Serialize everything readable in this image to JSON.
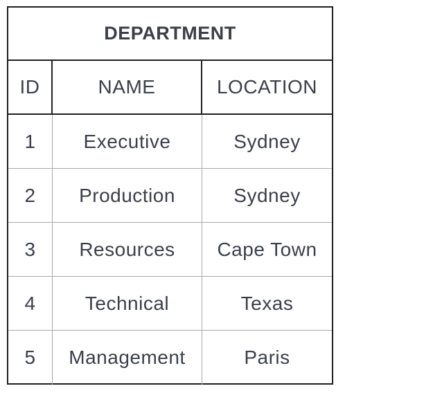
{
  "table": {
    "title": "DEPARTMENT",
    "columns": [
      "ID",
      "NAME",
      "LOCATION"
    ],
    "rows": [
      {
        "id": "1",
        "name": "Executive",
        "location": "Sydney"
      },
      {
        "id": "2",
        "name": "Production",
        "location": "Sydney"
      },
      {
        "id": "3",
        "name": "Resources",
        "location": "Cape Town"
      },
      {
        "id": "4",
        "name": "Technical",
        "location": "Texas"
      },
      {
        "id": "5",
        "name": "Management",
        "location": "Paris"
      }
    ]
  },
  "colors": {
    "text": "#3a3f4a",
    "outer_border": "#1f1f1f",
    "inner_border": "#a9a9a9"
  }
}
